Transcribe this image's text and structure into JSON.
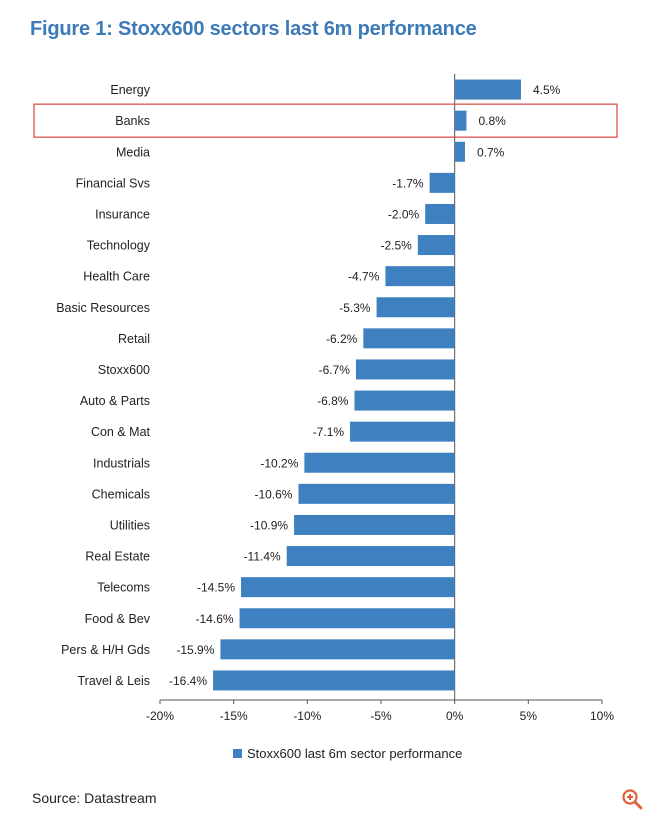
{
  "title": "Figure 1: Stoxx600 sectors last 6m performance",
  "source": "Source: Datastream",
  "colors": {
    "title": "#3d7ab8",
    "bar": "#3f80c0",
    "highlight_border": "#d9534f",
    "axis": "#555555",
    "zoom_icon": "#e0603a"
  },
  "icons": {
    "zoom": "zoom-in-icon"
  },
  "chart_data": {
    "type": "bar",
    "orientation": "horizontal",
    "title": "Figure 1: Stoxx600 sectors last 6m performance",
    "categories": [
      "Energy",
      "Banks",
      "Media",
      "Financial Svs",
      "Insurance",
      "Technology",
      "Health Care",
      "Basic Resources",
      "Retail",
      "Stoxx600",
      "Auto & Parts",
      "Con & Mat",
      "Industrials",
      "Chemicals",
      "Utilities",
      "Real Estate",
      "Telecoms",
      "Food & Bev",
      "Pers & H/H Gds",
      "Travel & Leis"
    ],
    "values": [
      4.5,
      0.8,
      0.7,
      -1.7,
      -2.0,
      -2.5,
      -4.7,
      -5.3,
      -6.2,
      -6.7,
      -6.8,
      -7.1,
      -10.2,
      -10.6,
      -10.9,
      -11.4,
      -14.5,
      -14.6,
      -15.9,
      -16.4
    ],
    "value_labels": [
      "4.5%",
      "0.8%",
      "0.7%",
      "-1.7%",
      "-2.0%",
      "-2.5%",
      "-4.7%",
      "-5.3%",
      "-6.2%",
      "-6.7%",
      "-6.8%",
      "-7.1%",
      "-10.2%",
      "-10.6%",
      "-10.9%",
      "-11.4%",
      "-14.5%",
      "-14.6%",
      "-15.9%",
      "-16.4%"
    ],
    "highlighted_category": "Banks",
    "xlim": [
      -20,
      10
    ],
    "xticks": [
      -20,
      -15,
      -10,
      -5,
      0,
      5,
      10
    ],
    "xtick_labels": [
      "-20%",
      "-15%",
      "-10%",
      "-5%",
      "0%",
      "5%",
      "10%"
    ],
    "legend": [
      "Stoxx600 last 6m sector performance"
    ],
    "legend_position": "bottom-center",
    "grid": false,
    "xlabel": "",
    "ylabel": ""
  }
}
